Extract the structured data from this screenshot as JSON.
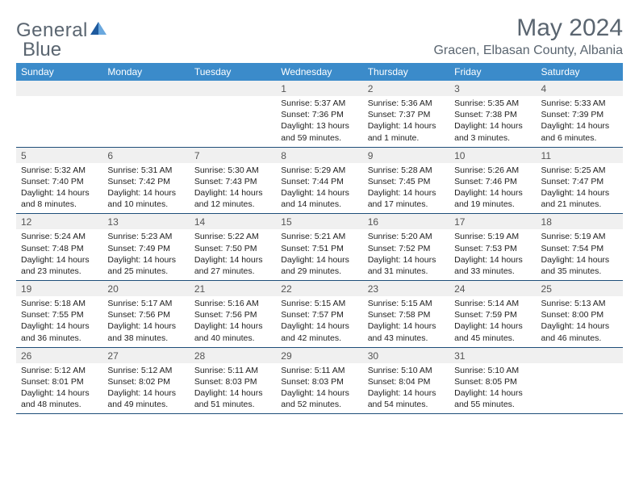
{
  "logo": {
    "text1": "General",
    "text2": "Blue"
  },
  "title": "May 2024",
  "location": "Gracen, Elbasan County, Albania",
  "colors": {
    "header_bg": "#3b8bca",
    "header_text": "#ffffff",
    "border": "#1f4e79",
    "daynum_bg": "#f0f0f0",
    "text_grey": "#5a6570",
    "logo_accent": "#1e5a9e"
  },
  "weekdays": [
    "Sunday",
    "Monday",
    "Tuesday",
    "Wednesday",
    "Thursday",
    "Friday",
    "Saturday"
  ],
  "weeks": [
    [
      null,
      null,
      null,
      {
        "n": "1",
        "sr": "5:37 AM",
        "ss": "7:36 PM",
        "dl": "13 hours and 59 minutes."
      },
      {
        "n": "2",
        "sr": "5:36 AM",
        "ss": "7:37 PM",
        "dl": "14 hours and 1 minute."
      },
      {
        "n": "3",
        "sr": "5:35 AM",
        "ss": "7:38 PM",
        "dl": "14 hours and 3 minutes."
      },
      {
        "n": "4",
        "sr": "5:33 AM",
        "ss": "7:39 PM",
        "dl": "14 hours and 6 minutes."
      }
    ],
    [
      {
        "n": "5",
        "sr": "5:32 AM",
        "ss": "7:40 PM",
        "dl": "14 hours and 8 minutes."
      },
      {
        "n": "6",
        "sr": "5:31 AM",
        "ss": "7:42 PM",
        "dl": "14 hours and 10 minutes."
      },
      {
        "n": "7",
        "sr": "5:30 AM",
        "ss": "7:43 PM",
        "dl": "14 hours and 12 minutes."
      },
      {
        "n": "8",
        "sr": "5:29 AM",
        "ss": "7:44 PM",
        "dl": "14 hours and 14 minutes."
      },
      {
        "n": "9",
        "sr": "5:28 AM",
        "ss": "7:45 PM",
        "dl": "14 hours and 17 minutes."
      },
      {
        "n": "10",
        "sr": "5:26 AM",
        "ss": "7:46 PM",
        "dl": "14 hours and 19 minutes."
      },
      {
        "n": "11",
        "sr": "5:25 AM",
        "ss": "7:47 PM",
        "dl": "14 hours and 21 minutes."
      }
    ],
    [
      {
        "n": "12",
        "sr": "5:24 AM",
        "ss": "7:48 PM",
        "dl": "14 hours and 23 minutes."
      },
      {
        "n": "13",
        "sr": "5:23 AM",
        "ss": "7:49 PM",
        "dl": "14 hours and 25 minutes."
      },
      {
        "n": "14",
        "sr": "5:22 AM",
        "ss": "7:50 PM",
        "dl": "14 hours and 27 minutes."
      },
      {
        "n": "15",
        "sr": "5:21 AM",
        "ss": "7:51 PM",
        "dl": "14 hours and 29 minutes."
      },
      {
        "n": "16",
        "sr": "5:20 AM",
        "ss": "7:52 PM",
        "dl": "14 hours and 31 minutes."
      },
      {
        "n": "17",
        "sr": "5:19 AM",
        "ss": "7:53 PM",
        "dl": "14 hours and 33 minutes."
      },
      {
        "n": "18",
        "sr": "5:19 AM",
        "ss": "7:54 PM",
        "dl": "14 hours and 35 minutes."
      }
    ],
    [
      {
        "n": "19",
        "sr": "5:18 AM",
        "ss": "7:55 PM",
        "dl": "14 hours and 36 minutes."
      },
      {
        "n": "20",
        "sr": "5:17 AM",
        "ss": "7:56 PM",
        "dl": "14 hours and 38 minutes."
      },
      {
        "n": "21",
        "sr": "5:16 AM",
        "ss": "7:56 PM",
        "dl": "14 hours and 40 minutes."
      },
      {
        "n": "22",
        "sr": "5:15 AM",
        "ss": "7:57 PM",
        "dl": "14 hours and 42 minutes."
      },
      {
        "n": "23",
        "sr": "5:15 AM",
        "ss": "7:58 PM",
        "dl": "14 hours and 43 minutes."
      },
      {
        "n": "24",
        "sr": "5:14 AM",
        "ss": "7:59 PM",
        "dl": "14 hours and 45 minutes."
      },
      {
        "n": "25",
        "sr": "5:13 AM",
        "ss": "8:00 PM",
        "dl": "14 hours and 46 minutes."
      }
    ],
    [
      {
        "n": "26",
        "sr": "5:12 AM",
        "ss": "8:01 PM",
        "dl": "14 hours and 48 minutes."
      },
      {
        "n": "27",
        "sr": "5:12 AM",
        "ss": "8:02 PM",
        "dl": "14 hours and 49 minutes."
      },
      {
        "n": "28",
        "sr": "5:11 AM",
        "ss": "8:03 PM",
        "dl": "14 hours and 51 minutes."
      },
      {
        "n": "29",
        "sr": "5:11 AM",
        "ss": "8:03 PM",
        "dl": "14 hours and 52 minutes."
      },
      {
        "n": "30",
        "sr": "5:10 AM",
        "ss": "8:04 PM",
        "dl": "14 hours and 54 minutes."
      },
      {
        "n": "31",
        "sr": "5:10 AM",
        "ss": "8:05 PM",
        "dl": "14 hours and 55 minutes."
      },
      null
    ]
  ],
  "labels": {
    "sunrise": "Sunrise:",
    "sunset": "Sunset:",
    "daylight": "Daylight:"
  }
}
